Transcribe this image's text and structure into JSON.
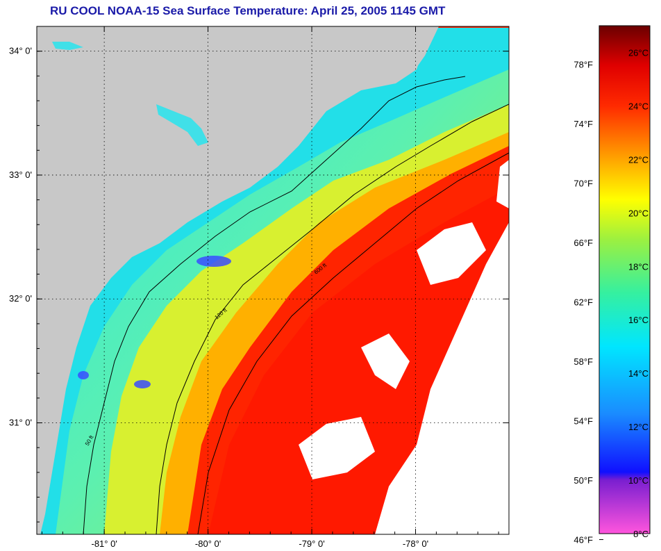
{
  "title": "RU COOL  NOAA-15  Sea Surface Temperature:  April 25, 2005 1145 GMT",
  "map": {
    "lon_range": [
      -81.65,
      -77.1
    ],
    "lat_range": [
      30.1,
      34.2
    ],
    "lat_ticks": [
      {
        "value": 34,
        "label": "34° 0'"
      },
      {
        "value": 33,
        "label": "33° 0'"
      },
      {
        "value": 32,
        "label": "32° 0'"
      },
      {
        "value": 31,
        "label": "31° 0'"
      }
    ],
    "lon_ticks": [
      {
        "value": -81,
        "label": "-81° 0'"
      },
      {
        "value": -80,
        "label": "-80° 0'"
      },
      {
        "value": -79,
        "label": "-79° 0'"
      },
      {
        "value": -78,
        "label": "-78° 0'"
      }
    ],
    "grid": "dotted",
    "colors": {
      "land": "#c8c8c8",
      "cloud": "#ffffff",
      "contour": "#000000"
    },
    "contours": [
      {
        "label": "50 ft"
      },
      {
        "label": "120 ft"
      },
      {
        "label": "600 ft"
      }
    ]
  },
  "colorbar": {
    "celsius_range": [
      8,
      27
    ],
    "celsius_labels": [
      "26°C",
      "24°C",
      "22°C",
      "20°C",
      "18°C",
      "16°C",
      "14°C",
      "12°C",
      "10°C",
      "8°C"
    ],
    "fahrenheit_labels": [
      "78°F",
      "74°F",
      "70°F",
      "66°F",
      "62°F",
      "58°F",
      "54°F",
      "50°F",
      "46°F"
    ],
    "stops": [
      {
        "c": 8,
        "color": "#ff55dd"
      },
      {
        "c": 10,
        "color": "#7a1fd0"
      },
      {
        "c": 10.3,
        "color": "#1010ff"
      },
      {
        "c": 12.5,
        "color": "#1a8cff"
      },
      {
        "c": 15,
        "color": "#00e6ff"
      },
      {
        "c": 17,
        "color": "#35f0a0"
      },
      {
        "c": 19,
        "color": "#9cf040"
      },
      {
        "c": 20.5,
        "color": "#ffff00"
      },
      {
        "c": 22,
        "color": "#ffa500"
      },
      {
        "c": 24,
        "color": "#ff2a00"
      },
      {
        "c": 25.5,
        "color": "#e00000"
      },
      {
        "c": 27,
        "color": "#6b0000"
      }
    ]
  }
}
